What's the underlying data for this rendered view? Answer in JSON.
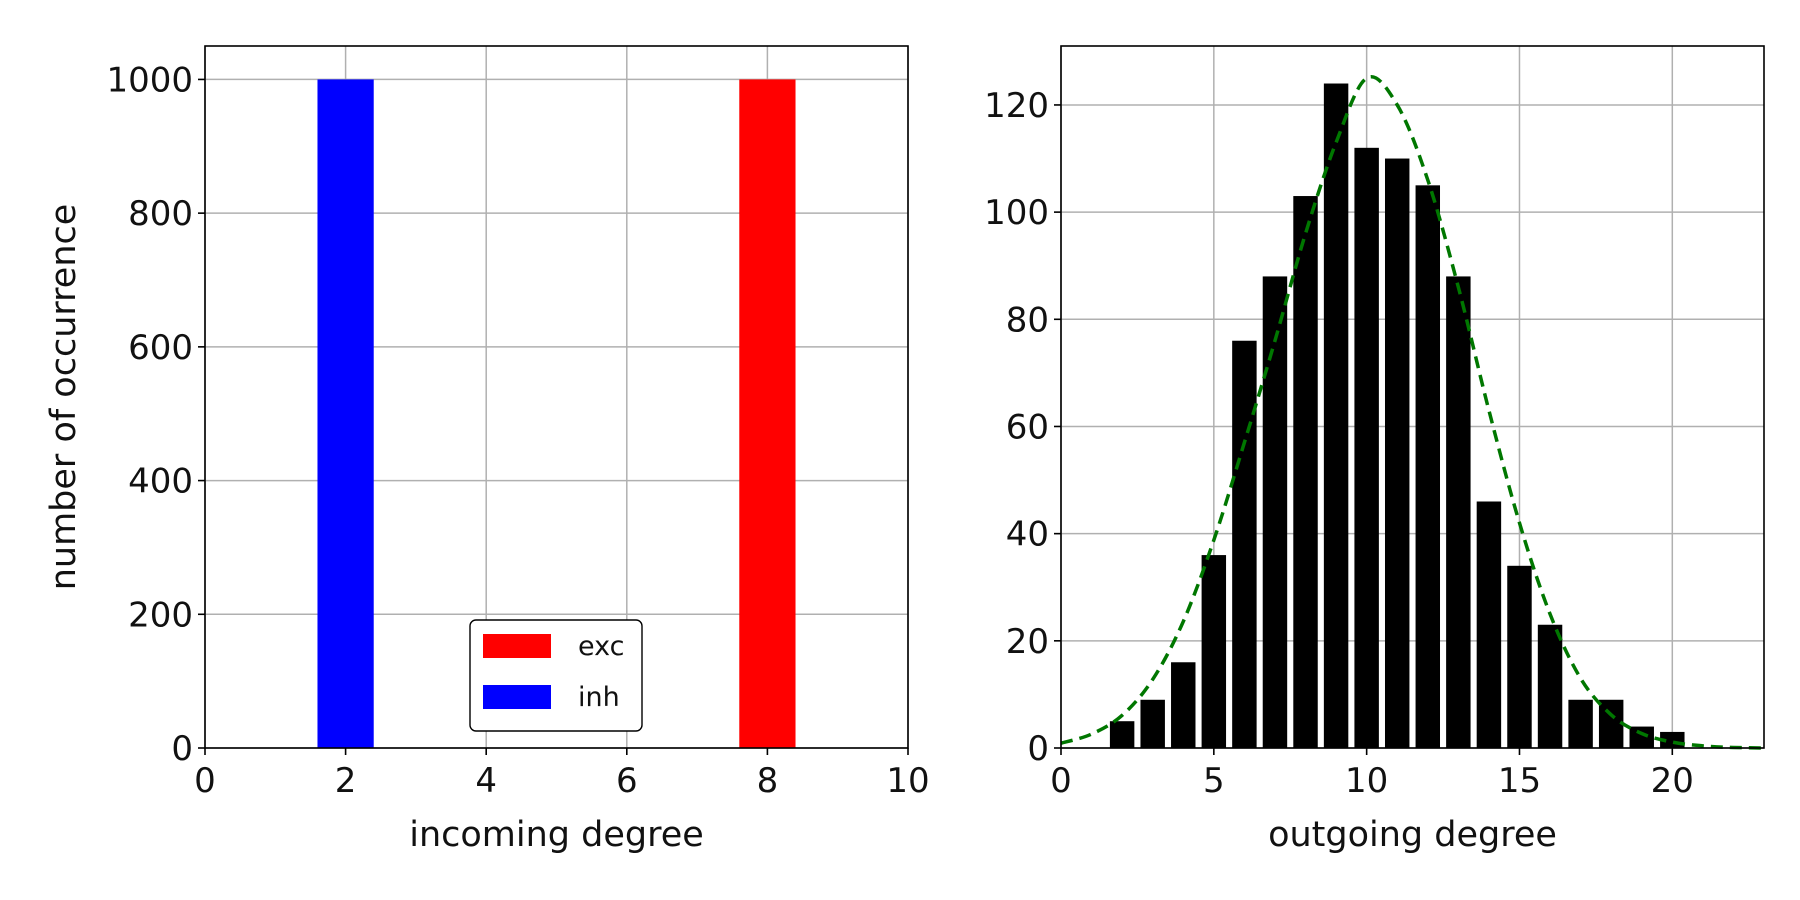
{
  "chart_data": [
    {
      "type": "bar",
      "xlabel": "incoming degree",
      "ylabel": "number of occurrence",
      "xlim": [
        0,
        10
      ],
      "ylim": [
        0,
        1050
      ],
      "xticks": [
        0,
        2,
        4,
        6,
        8,
        10
      ],
      "yticks": [
        0,
        200,
        400,
        600,
        800,
        1000
      ],
      "grid": true,
      "bar_width": 0.8,
      "legend_position": "lower-center",
      "series": [
        {
          "name": "exc",
          "color": "#ff0000",
          "x": [
            8
          ],
          "values": [
            1000
          ]
        },
        {
          "name": "inh",
          "color": "#0000ff",
          "x": [
            2
          ],
          "values": [
            1000
          ]
        }
      ]
    },
    {
      "type": "bar",
      "xlabel": "outgoing degree",
      "ylabel": "",
      "xlim": [
        0,
        23
      ],
      "ylim": [
        0,
        131
      ],
      "xticks": [
        0,
        5,
        10,
        15,
        20
      ],
      "yticks": [
        0,
        20,
        40,
        60,
        80,
        100,
        120
      ],
      "grid": true,
      "bar_width": 0.8,
      "bar_color": "#000000",
      "x": [
        2,
        3,
        4,
        5,
        6,
        7,
        8,
        9,
        10,
        11,
        12,
        13,
        14,
        15,
        16,
        17,
        18,
        19,
        20
      ],
      "values": [
        5,
        9,
        16,
        36,
        76,
        88,
        103,
        124,
        112,
        110,
        105,
        88,
        46,
        34,
        23,
        9,
        9,
        4,
        3
      ],
      "fit_curve": {
        "style": "dashed",
        "color": "#007700",
        "x": [
          0,
          1,
          2,
          3,
          4,
          5,
          6,
          7,
          8,
          9,
          10,
          11,
          12,
          13,
          14,
          15,
          16,
          17,
          18,
          19,
          20,
          21,
          22,
          23
        ],
        "y": [
          0.9,
          2.6,
          6.1,
          12.8,
          23.6,
          38.8,
          57.0,
          76.0,
          96.0,
          113.0,
          125.0,
          120.0,
          106.0,
          86.0,
          63.0,
          42.0,
          25.0,
          13.0,
          6.2,
          2.7,
          1.1,
          0.4,
          0.1,
          0.0
        ]
      }
    }
  ]
}
